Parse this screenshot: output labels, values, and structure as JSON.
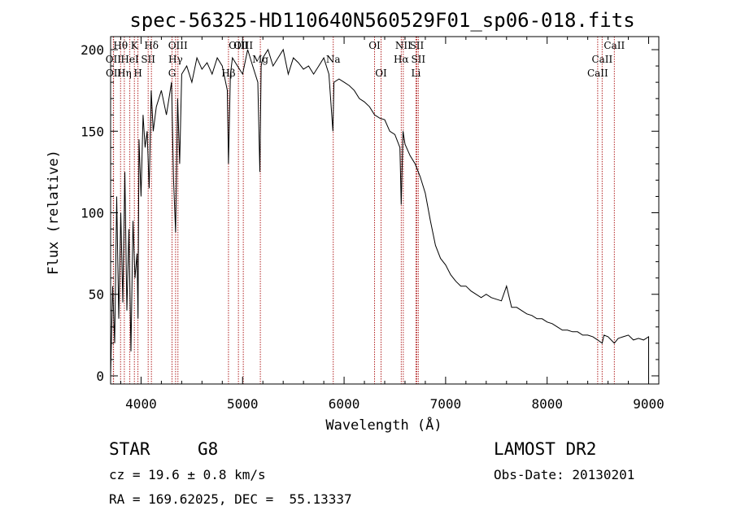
{
  "chart_data": {
    "type": "line",
    "title": "spec-56325-HD110640N560529F01_sp06-018.fits",
    "xlabel": "Wavelength (Å)",
    "ylabel": "Flux (relative)",
    "xlim": [
      3700,
      9100
    ],
    "ylim": [
      -5,
      208
    ],
    "x_ticks": [
      4000,
      5000,
      6000,
      7000,
      8000,
      9000
    ],
    "y_ticks": [
      0,
      50,
      100,
      150,
      200
    ],
    "grid": false,
    "series": [
      {
        "x": [
          3700,
          3720,
          3740,
          3760,
          3780,
          3800,
          3820,
          3840,
          3860,
          3880,
          3900,
          3920,
          3940,
          3960,
          3970,
          3980,
          4000,
          4020,
          4040,
          4060,
          4080,
          4100,
          4120,
          4150,
          4200,
          4250,
          4300,
          4320,
          4340,
          4360,
          4380,
          4400,
          4450,
          4500,
          4550,
          4600,
          4650,
          4700,
          4750,
          4800,
          4850,
          4861,
          4880,
          4900,
          4950,
          5000,
          5050,
          5100,
          5150,
          5170,
          5183,
          5200,
          5250,
          5300,
          5350,
          5400,
          5450,
          5500,
          5550,
          5600,
          5650,
          5700,
          5750,
          5800,
          5850,
          5890,
          5900,
          5950,
          6000,
          6050,
          6100,
          6150,
          6200,
          6250,
          6300,
          6350,
          6400,
          6450,
          6500,
          6550,
          6563,
          6580,
          6600,
          6650,
          6700,
          6750,
          6800,
          6850,
          6900,
          6950,
          7000,
          7050,
          7100,
          7150,
          7200,
          7250,
          7300,
          7350,
          7400,
          7450,
          7500,
          7550,
          7600,
          7650,
          7700,
          7750,
          7800,
          7850,
          7900,
          7950,
          8000,
          8050,
          8100,
          8150,
          8200,
          8250,
          8300,
          8350,
          8400,
          8450,
          8498,
          8542,
          8560,
          8600,
          8662,
          8700,
          8750,
          8800,
          8850,
          8900,
          8950,
          9000,
          9000
        ],
        "y": [
          0,
          55,
          20,
          110,
          35,
          100,
          45,
          125,
          40,
          90,
          15,
          95,
          60,
          75,
          35,
          145,
          110,
          160,
          140,
          150,
          115,
          175,
          150,
          165,
          175,
          160,
          180,
          120,
          88,
          170,
          130,
          185,
          190,
          180,
          195,
          188,
          192,
          185,
          195,
          190,
          175,
          130,
          185,
          195,
          190,
          185,
          200,
          190,
          180,
          125,
          190,
          195,
          200,
          190,
          195,
          200,
          185,
          195,
          192,
          188,
          190,
          185,
          190,
          195,
          185,
          150,
          180,
          182,
          180,
          178,
          175,
          170,
          168,
          165,
          160,
          158,
          157,
          150,
          148,
          140,
          105,
          150,
          142,
          135,
          130,
          122,
          112,
          95,
          80,
          72,
          68,
          62,
          58,
          55,
          55,
          52,
          50,
          48,
          50,
          48,
          47,
          46,
          55,
          42,
          42,
          40,
          38,
          37,
          35,
          35,
          33,
          32,
          30,
          28,
          28,
          27,
          27,
          25,
          25,
          24,
          22,
          20,
          25,
          24,
          20,
          23,
          24,
          25,
          22,
          23,
          22,
          24,
          -2
        ]
      }
    ],
    "spectral_lines": [
      {
        "label": "Hθ",
        "wavelength": 3798,
        "row": 0
      },
      {
        "label": "OII",
        "wavelength": 3727,
        "row": 1
      },
      {
        "label": "OII",
        "wavelength": 3729,
        "row": 2
      },
      {
        "label": "Hη",
        "wavelength": 3835,
        "row": 2
      },
      {
        "label": "HeI",
        "wavelength": 3889,
        "row": 1
      },
      {
        "label": "K",
        "wavelength": 3934,
        "row": 0
      },
      {
        "label": "H",
        "wavelength": 3969,
        "row": 2
      },
      {
        "label": "SII",
        "wavelength": 4070,
        "row": 1
      },
      {
        "label": "Hδ",
        "wavelength": 4102,
        "row": 0
      },
      {
        "label": "OIII",
        "wavelength": 4363,
        "row": 0
      },
      {
        "label": "Hγ",
        "wavelength": 4340,
        "row": 1
      },
      {
        "label": "G",
        "wavelength": 4305,
        "row": 2
      },
      {
        "label": "OIII",
        "wavelength": 4959,
        "row": 0
      },
      {
        "label": "OIII",
        "wavelength": 5007,
        "row": 0
      },
      {
        "label": "Hβ",
        "wavelength": 4861,
        "row": 2
      },
      {
        "label": "Mg",
        "wavelength": 5175,
        "row": 1
      },
      {
        "label": "Na",
        "wavelength": 5893,
        "row": 1
      },
      {
        "label": "OI",
        "wavelength": 6300,
        "row": 0
      },
      {
        "label": "OI",
        "wavelength": 6364,
        "row": 2
      },
      {
        "label": "NII",
        "wavelength": 6583,
        "row": 0
      },
      {
        "label": "SII",
        "wavelength": 6716,
        "row": 0
      },
      {
        "label": "Hα",
        "wavelength": 6563,
        "row": 1
      },
      {
        "label": "SII",
        "wavelength": 6731,
        "row": 1
      },
      {
        "label": "Li",
        "wavelength": 6708,
        "row": 2
      },
      {
        "label": "CaII",
        "wavelength": 8662,
        "row": 0
      },
      {
        "label": "CaII",
        "wavelength": 8542,
        "row": 1
      },
      {
        "label": "CaII",
        "wavelength": 8498,
        "row": 2
      }
    ]
  },
  "info": {
    "class": "STAR",
    "subclass": "G8",
    "survey": "LAMOST DR2",
    "cz": "cz = 19.6 ± 0.8 km/s",
    "obs_date": "Obs-Date: 20130201",
    "radec": "RA = 169.62025, DEC =  55.13337"
  },
  "colors": {
    "line": "#000000",
    "marker": "#b22222"
  }
}
